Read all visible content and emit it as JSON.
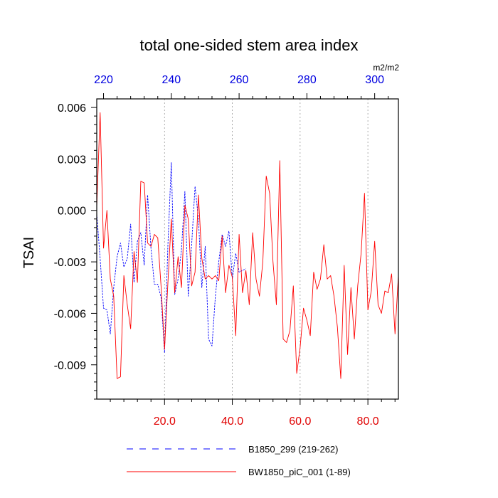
{
  "chart_data": {
    "type": "line",
    "title": "total one-sided stem area index",
    "ylabel": "TSAI",
    "top_axis_unit": "m2/m2",
    "xlim": [
      0,
      89
    ],
    "ylim": [
      -0.011,
      0.0065
    ],
    "top_axis_offset": 218,
    "grid": "vertical-dotted",
    "bottom_ticks": [
      {
        "value": 20,
        "label": "20.0"
      },
      {
        "value": 40,
        "label": "40.0"
      },
      {
        "value": 60,
        "label": "60.0"
      },
      {
        "value": 80,
        "label": "80.0"
      }
    ],
    "top_ticks": [
      {
        "value": 220,
        "label": "220"
      },
      {
        "value": 240,
        "label": "240"
      },
      {
        "value": 260,
        "label": "260"
      },
      {
        "value": 280,
        "label": "280"
      },
      {
        "value": 300,
        "label": "300"
      }
    ],
    "left_ticks": [
      {
        "value": 0.006,
        "label": "0.006"
      },
      {
        "value": 0.003,
        "label": "0.003"
      },
      {
        "value": 0.0,
        "label": "0.000"
      },
      {
        "value": -0.003,
        "label": "-0.003"
      },
      {
        "value": -0.006,
        "label": "-0.006"
      },
      {
        "value": -0.009,
        "label": "-0.009"
      }
    ],
    "series": [
      {
        "name": "B1850_299 (219-262)",
        "color": "#0000ff",
        "style": "dashed",
        "x": [
          0,
          1,
          2,
          3,
          4,
          5,
          6,
          7,
          8,
          9,
          10,
          11,
          12,
          13,
          14,
          15,
          16,
          17,
          18,
          19,
          20,
          21,
          22,
          23,
          24,
          25,
          26,
          27,
          28,
          29,
          30,
          31,
          32,
          33,
          34,
          35,
          36,
          37,
          38,
          39,
          40,
          41,
          42,
          43,
          44
        ],
        "y": [
          -0.0002,
          -0.0028,
          -0.0057,
          -0.0058,
          -0.0072,
          -0.0045,
          -0.0027,
          -0.0019,
          -0.0033,
          -0.0028,
          -0.0008,
          -0.0042,
          -0.0018,
          -0.0013,
          -0.0032,
          0.0009,
          -0.0022,
          -0.0043,
          -0.0043,
          -0.0051,
          -0.0083,
          -0.002,
          0.0028,
          -0.0049,
          -0.004,
          -0.0023,
          0.0011,
          -0.005,
          -0.002,
          0.0014,
          -0.0005,
          -0.0045,
          -0.0021,
          -0.0075,
          -0.0079,
          -0.005,
          -0.003,
          -0.0014,
          -0.0021,
          -0.0012,
          -0.004,
          -0.0025,
          -0.0036,
          -0.0035,
          -0.0034
        ]
      },
      {
        "name": "BW1850_piC_001 (1-89)",
        "color": "#ff0000",
        "style": "solid",
        "x": [
          0,
          1,
          2,
          3,
          4,
          5,
          6,
          7,
          8,
          9,
          10,
          11,
          12,
          13,
          14,
          15,
          16,
          17,
          18,
          19,
          20,
          21,
          22,
          23,
          24,
          25,
          26,
          27,
          28,
          29,
          30,
          31,
          32,
          33,
          34,
          35,
          36,
          37,
          38,
          39,
          40,
          41,
          42,
          43,
          44,
          45,
          46,
          47,
          48,
          49,
          50,
          51,
          52,
          53,
          54,
          55,
          56,
          57,
          58,
          59,
          60,
          61,
          62,
          63,
          64,
          65,
          66,
          67,
          68,
          69,
          70,
          71,
          72,
          73,
          74,
          75,
          76,
          77,
          78,
          79,
          80,
          81,
          82,
          83,
          84,
          85,
          86,
          87,
          88,
          89
        ],
        "y": [
          0.0002,
          0.0057,
          -0.0022,
          0.0,
          -0.004,
          -0.005,
          -0.0098,
          -0.0097,
          -0.0038,
          -0.0055,
          -0.0069,
          -0.0024,
          -0.0042,
          0.0017,
          0.0016,
          -0.0019,
          -0.0021,
          -0.0014,
          -0.0016,
          -0.0045,
          -0.0081,
          -0.0042,
          -0.0005,
          -0.0048,
          -0.0027,
          -0.0045,
          0.0003,
          -0.0005,
          -0.0044,
          -0.0036,
          0.0009,
          -0.0028,
          -0.004,
          -0.0038,
          -0.004,
          -0.0038,
          -0.0041,
          -0.0015,
          -0.0048,
          -0.0032,
          -0.0039,
          -0.0073,
          -0.0014,
          -0.0048,
          -0.0035,
          -0.0055,
          -0.0013,
          -0.004,
          -0.005,
          -0.003,
          0.002,
          0.001,
          -0.003,
          -0.0055,
          0.0029,
          -0.0075,
          -0.0077,
          -0.007,
          -0.0044,
          -0.0095,
          -0.008,
          -0.0057,
          -0.0064,
          -0.0073,
          -0.0036,
          -0.0046,
          -0.004,
          -0.002,
          -0.004,
          -0.0038,
          -0.005,
          -0.0068,
          -0.0098,
          -0.0032,
          -0.0084,
          -0.0045,
          -0.0075,
          -0.0044,
          -0.0025,
          0.001,
          -0.0058,
          -0.0047,
          -0.0018,
          -0.0055,
          -0.006,
          -0.0047,
          -0.0048,
          -0.0037,
          -0.0072,
          -0.0038
        ]
      }
    ]
  }
}
